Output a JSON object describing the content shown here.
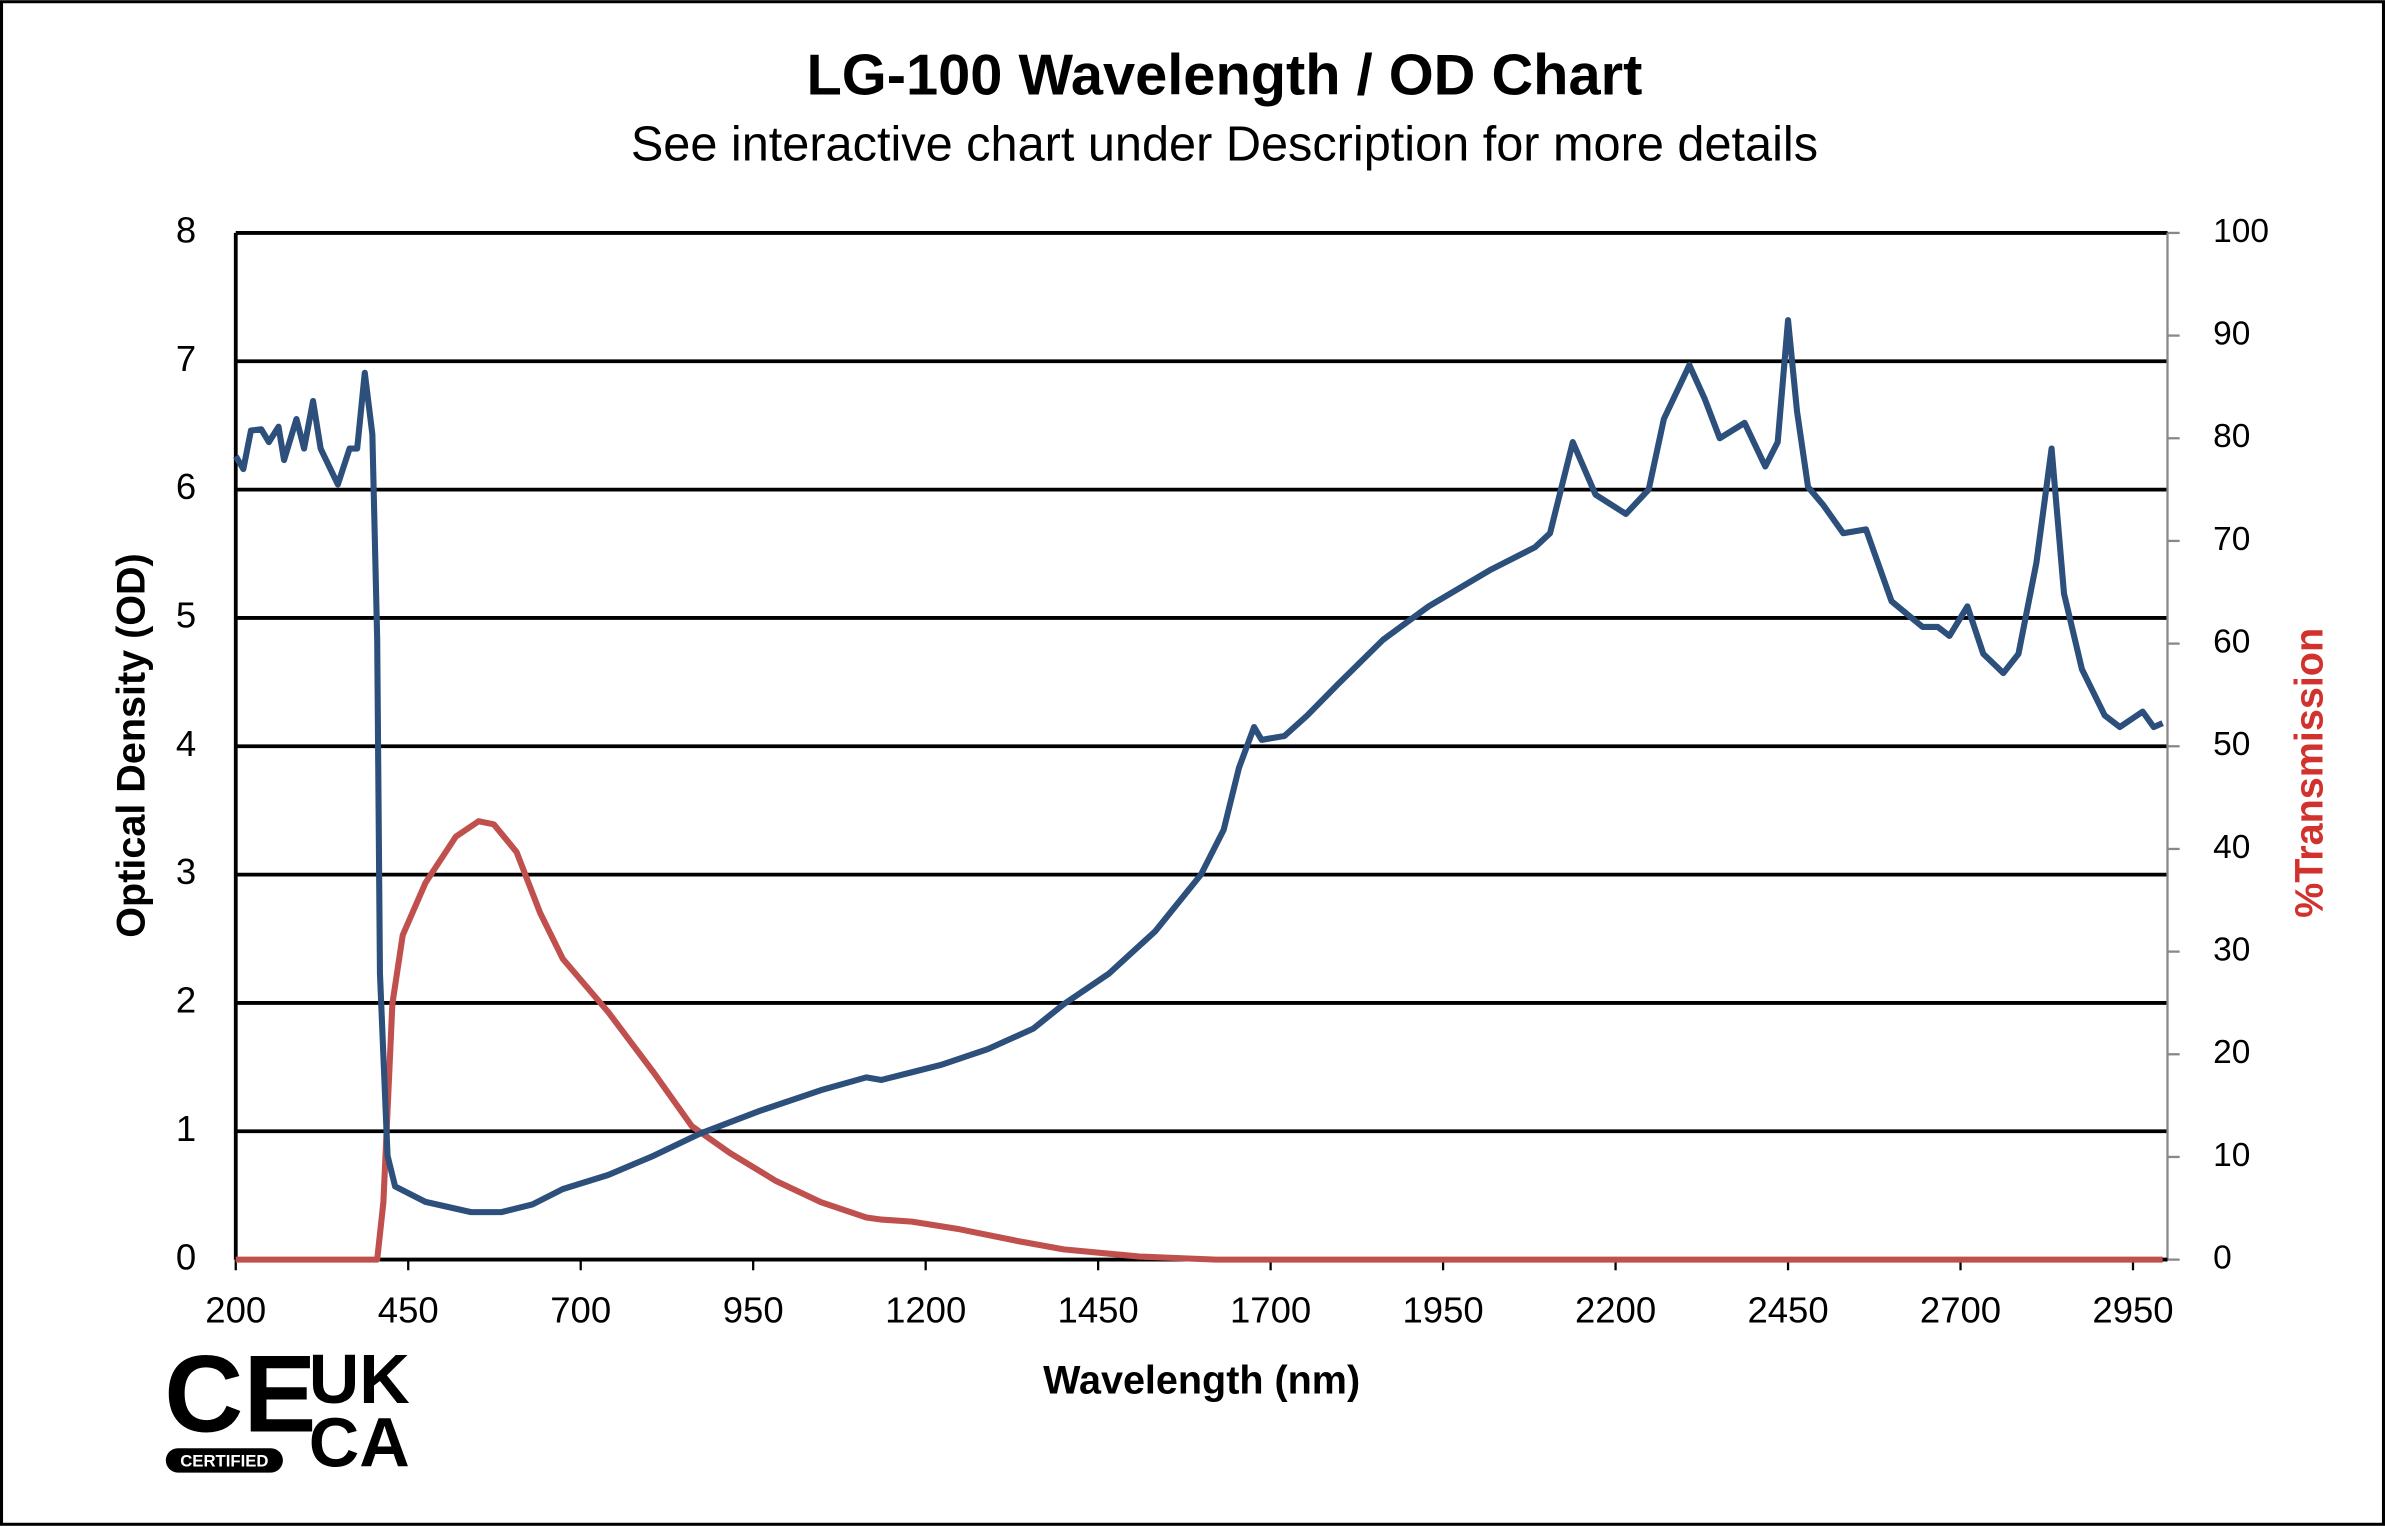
{
  "chart_data": {
    "type": "line",
    "title": "LG-100 Wavelength / OD Chart",
    "subtitle": "See interactive chart under Description for more details",
    "xlabel": "Wavelength (nm)",
    "ylabel": "Optical Density (OD)",
    "y2label": "%Transmission",
    "xlim": [
      200,
      3000
    ],
    "xticks": [
      200,
      450,
      700,
      950,
      1200,
      1450,
      1700,
      1950,
      2200,
      2450,
      2700,
      2950
    ],
    "ylim": [
      0,
      8
    ],
    "yticks": [
      0,
      1,
      2,
      3,
      4,
      5,
      6,
      7,
      8
    ],
    "y2lim": [
      0,
      100
    ],
    "y2ticks": [
      0,
      10,
      20,
      30,
      40,
      50,
      60,
      70,
      80,
      90,
      100
    ],
    "grid": true,
    "series": [
      {
        "name": "Optical Density (OD)",
        "color": "#2c4f7c",
        "x": [
          200,
          211,
          222,
          237,
          248,
          262,
          270,
          288,
          299,
          312,
          323,
          348,
          365,
          376,
          387,
          398,
          405,
          409,
          420,
          431,
          475,
          541,
          585,
          630,
          674,
          740,
          806,
          872,
          960,
          1048,
          1114,
          1136,
          1180,
          1224,
          1290,
          1356,
          1400,
          1466,
          1533,
          1599,
          1632,
          1654,
          1676,
          1687,
          1720,
          1753,
          1797,
          1863,
          1929,
          2017,
          2083,
          2105,
          2138,
          2171,
          2215,
          2248,
          2270,
          2307,
          2329,
          2351,
          2387,
          2417,
          2435,
          2450,
          2463,
          2479,
          2501,
          2530,
          2563,
          2600,
          2645,
          2667,
          2684,
          2710,
          2733,
          2762,
          2784,
          2810,
          2832,
          2850,
          2876,
          2909,
          2931,
          2964,
          2980,
          2993
        ],
        "values": [
          6.26,
          6.16,
          6.46,
          6.47,
          6.37,
          6.49,
          6.23,
          6.55,
          6.32,
          6.69,
          6.32,
          6.04,
          6.32,
          6.32,
          6.91,
          6.43,
          4.83,
          2.23,
          0.81,
          0.57,
          0.45,
          0.37,
          0.37,
          0.43,
          0.55,
          0.66,
          0.81,
          0.98,
          1.16,
          1.32,
          1.42,
          1.4,
          1.46,
          1.52,
          1.64,
          1.8,
          1.99,
          2.23,
          2.56,
          3.0,
          3.35,
          3.83,
          4.15,
          4.05,
          4.08,
          4.24,
          4.48,
          4.83,
          5.09,
          5.37,
          5.55,
          5.66,
          6.37,
          5.96,
          5.81,
          6.0,
          6.55,
          6.97,
          6.71,
          6.4,
          6.52,
          6.18,
          6.37,
          7.32,
          6.61,
          6.02,
          5.88,
          5.66,
          5.69,
          5.13,
          4.93,
          4.93,
          4.86,
          5.09,
          4.72,
          4.57,
          4.72,
          5.43,
          6.32,
          5.19,
          4.6,
          4.24,
          4.15,
          4.27,
          4.15,
          4.18
        ]
      },
      {
        "name": "%Transmission",
        "color": "#c0504d",
        "axis": "y2",
        "x": [
          200,
          400,
          405,
          414,
          427,
          442,
          475,
          519,
          552,
          574,
          607,
          641,
          674,
          740,
          806,
          861,
          916,
          982,
          1048,
          1114,
          1136,
          1180,
          1246,
          1334,
          1400,
          1510,
          1621,
          2993
        ],
        "values": [
          0,
          0,
          0,
          5.6,
          24.9,
          31.6,
          36.7,
          41.2,
          42.7,
          42.4,
          39.7,
          33.8,
          29.3,
          24.1,
          18.2,
          13.0,
          10.4,
          7.7,
          5.6,
          4.1,
          3.9,
          3.7,
          3.0,
          1.8,
          1.0,
          0.3,
          0,
          0
        ]
      }
    ]
  },
  "logo": {
    "ce": "CE",
    "badge": "CERTIFIED",
    "uk": "UK",
    "ca": "CA"
  }
}
